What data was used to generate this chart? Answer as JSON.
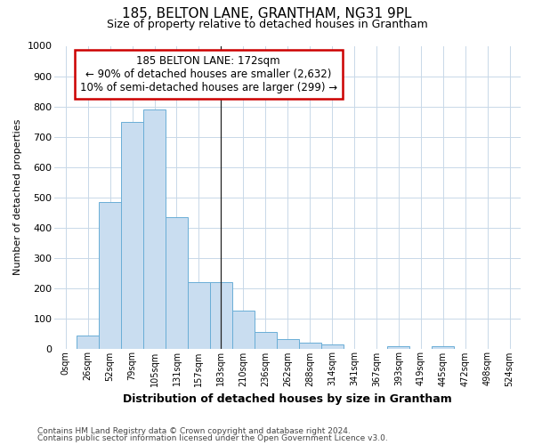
{
  "title": "185, BELTON LANE, GRANTHAM, NG31 9PL",
  "subtitle": "Size of property relative to detached houses in Grantham",
  "xlabel": "Distribution of detached houses by size in Grantham",
  "ylabel": "Number of detached properties",
  "bar_labels": [
    "0sqm",
    "26sqm",
    "52sqm",
    "79sqm",
    "105sqm",
    "131sqm",
    "157sqm",
    "183sqm",
    "210sqm",
    "236sqm",
    "262sqm",
    "288sqm",
    "314sqm",
    "341sqm",
    "367sqm",
    "393sqm",
    "419sqm",
    "445sqm",
    "472sqm",
    "498sqm",
    "524sqm"
  ],
  "bar_values": [
    0,
    42,
    485,
    750,
    790,
    435,
    220,
    220,
    125,
    55,
    30,
    18,
    12,
    0,
    0,
    8,
    0,
    8,
    0,
    0,
    0
  ],
  "bar_color": "#c9ddf0",
  "bar_edge_color": "#6aaed6",
  "fig_bg_color": "#ffffff",
  "plot_bg_color": "#ffffff",
  "grid_color": "#c8d8e8",
  "vline_color": "#222222",
  "vline_x": 7.0,
  "ylim": [
    0,
    1000
  ],
  "annotation_text": "185 BELTON LANE: 172sqm\n← 90% of detached houses are smaller (2,632)\n10% of semi-detached houses are larger (299) →",
  "annotation_box_color": "#ffffff",
  "annotation_box_edge": "#cc0000",
  "footnote1": "Contains HM Land Registry data © Crown copyright and database right 2024.",
  "footnote2": "Contains public sector information licensed under the Open Government Licence v3.0."
}
